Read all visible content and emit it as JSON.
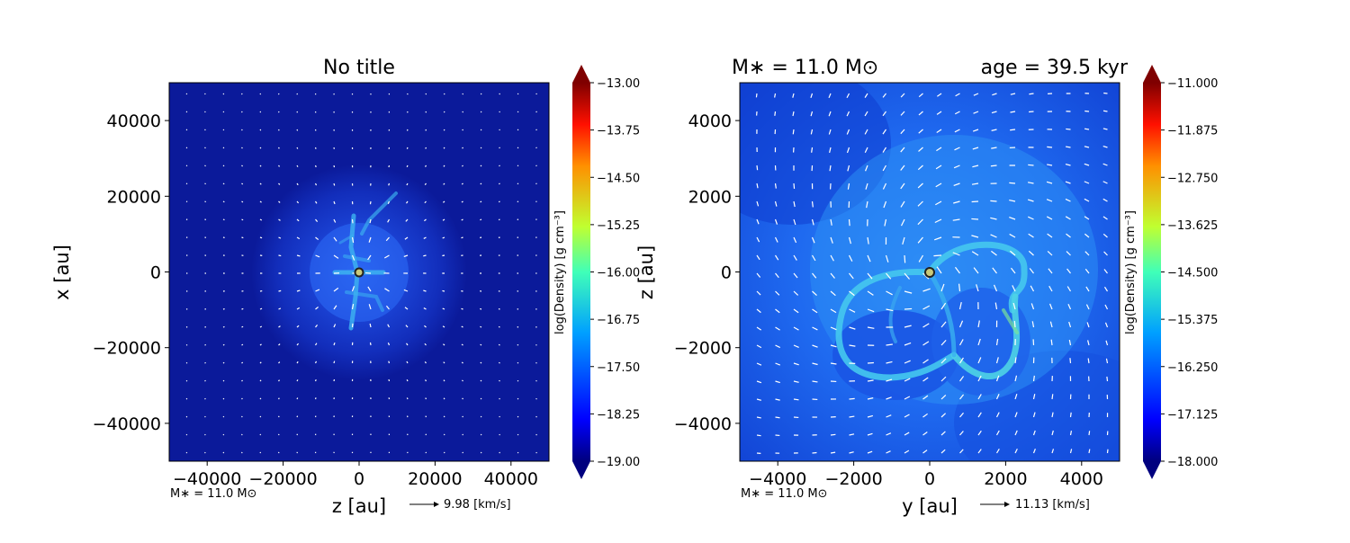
{
  "chart_data": [
    {
      "type": "heatmap",
      "title": "No title",
      "xlabel": "z [au]",
      "ylabel": "x [au]",
      "xlim": [
        -50000,
        50000
      ],
      "ylim": [
        -50000,
        50000
      ],
      "x_ticks": [
        "−40000",
        "−20000",
        "0",
        "20000",
        "40000"
      ],
      "y_ticks": [
        "40000",
        "20000",
        "0",
        "−20000",
        "−40000"
      ],
      "x_tick_values": [
        -40000,
        -20000,
        0,
        20000,
        40000
      ],
      "y_tick_values": [
        40000,
        20000,
        0,
        -20000,
        -40000
      ],
      "colorbar": {
        "label": "log(Density) [g cm⁻³]",
        "min": -19.0,
        "max": -13.0,
        "ticks": [
          "−13.00",
          "−13.75",
          "−14.50",
          "−15.25",
          "−16.00",
          "−16.75",
          "−17.50",
          "−18.25",
          "−19.00"
        ],
        "colormap": "jet"
      },
      "footer_mass": "M∗ = 11.0 M⊙",
      "arrow_legend": "9.98 [km/s]",
      "colors": {
        "background": "#0b1a9a",
        "halo": "#1a3fd8",
        "filament": "#3fb7f0"
      }
    },
    {
      "type": "heatmap",
      "title_left": "M∗ = 11.0 M⊙",
      "title_right": "age = 39.5 kyr",
      "xlabel": "y [au]",
      "ylabel": "z [au]",
      "xlim": [
        -5000,
        5000
      ],
      "ylim": [
        -5000,
        5000
      ],
      "x_ticks": [
        "−4000",
        "−2000",
        "0",
        "2000",
        "4000"
      ],
      "y_ticks": [
        "4000",
        "2000",
        "0",
        "−2000",
        "−4000"
      ],
      "x_tick_values": [
        -4000,
        -2000,
        0,
        2000,
        4000
      ],
      "y_tick_values": [
        4000,
        2000,
        0,
        -2000,
        -4000
      ],
      "colorbar": {
        "label": "log(Density) [g cm⁻³]",
        "min": -18.0,
        "max": -11.0,
        "ticks": [
          "−11.000",
          "−11.875",
          "−12.750",
          "−13.625",
          "−14.500",
          "−15.375",
          "−16.250",
          "−17.125",
          "−18.000"
        ],
        "colormap": "jet"
      },
      "footer_mass": "M∗ = 11.0 M⊙",
      "arrow_legend": "11.13 [km/s]",
      "colors": {
        "background": "#1b5ff0",
        "shell": "#43c3ee",
        "filament": "#3bd0e0"
      }
    }
  ]
}
